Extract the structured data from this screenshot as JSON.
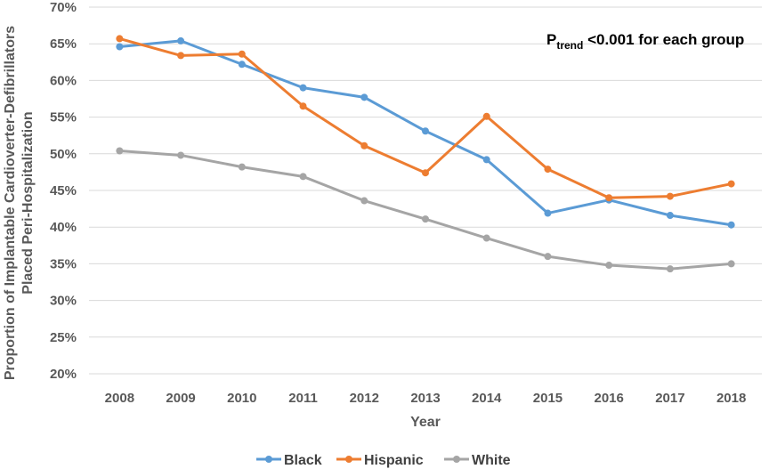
{
  "chart_data": {
    "type": "line",
    "title": "",
    "xlabel": "Year",
    "ylabel_lines": [
      "Proportion of Implantable Cardioverter-Defibrillators",
      "Placed Peri-Hospitalization"
    ],
    "categories": [
      "2008",
      "2009",
      "2010",
      "2011",
      "2012",
      "2013",
      "2014",
      "2015",
      "2016",
      "2017",
      "2018"
    ],
    "ylim": [
      20,
      70
    ],
    "ystep": 5,
    "ytick_labels": [
      "20%",
      "25%",
      "30%",
      "35%",
      "40%",
      "45%",
      "50%",
      "55%",
      "60%",
      "65%",
      "70%"
    ],
    "grid": true,
    "legend_position": "bottom",
    "series": [
      {
        "name": "Black",
        "color": "#5b9bd5",
        "values": [
          64.6,
          65.4,
          62.2,
          59.0,
          57.7,
          53.1,
          49.2,
          41.9,
          43.7,
          41.6,
          40.3
        ]
      },
      {
        "name": "Hispanic",
        "color": "#ed7d31",
        "values": [
          65.7,
          63.4,
          63.6,
          56.5,
          51.1,
          47.4,
          55.1,
          47.9,
          44.0,
          44.2,
          45.9
        ]
      },
      {
        "name": "White",
        "color": "#a5a5a5",
        "values": [
          50.4,
          49.8,
          48.2,
          46.9,
          43.6,
          41.1,
          38.5,
          36.0,
          34.8,
          34.3,
          35.0
        ]
      }
    ],
    "annotation": {
      "prefix": "P",
      "subscript": "trend",
      "text": " <0.001 for each group"
    }
  }
}
